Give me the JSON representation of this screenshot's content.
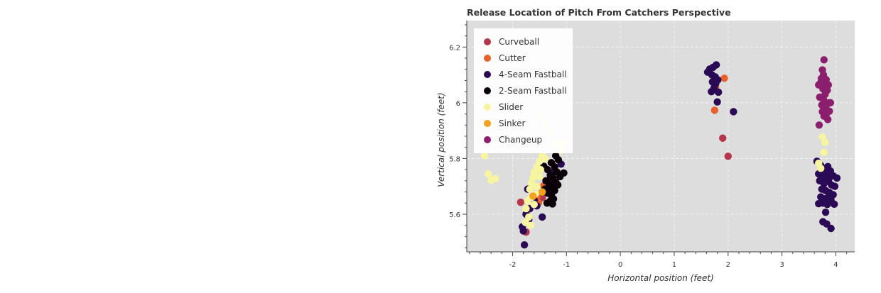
{
  "chart_data": {
    "type": "scatter",
    "title": "Release Location of Pitch From Catchers Perspective",
    "xlabel": "Horizontal position (feet)",
    "ylabel": "Vertical position (feet)",
    "xlim": [
      -2.85,
      4.35
    ],
    "ylim": [
      5.465,
      6.295
    ],
    "x_ticks": [
      -2,
      -1,
      0,
      1,
      2,
      3,
      4
    ],
    "x_tick_labels": [
      "-2",
      "-1",
      "0",
      "1",
      "2",
      "3",
      "4"
    ],
    "y_ticks": [
      5.6,
      5.8,
      6.0,
      6.2
    ],
    "y_tick_labels": [
      "5.6",
      "5.8",
      "6",
      "6.2"
    ],
    "grid": true,
    "background": "#dddddd",
    "legend_position": "top-left",
    "series": [
      {
        "name": "Curveball",
        "color": "#b5364a",
        "points": [
          [
            1.9,
            5.873
          ],
          [
            2.0,
            5.808
          ],
          [
            -1.85,
            5.643
          ],
          [
            -1.75,
            5.536
          ],
          [
            -1.45,
            5.66
          ]
        ]
      },
      {
        "name": "Cutter",
        "color": "#e8602a",
        "points": [
          [
            1.93,
            6.088
          ],
          [
            1.77,
            6.054
          ],
          [
            1.75,
            5.973
          ],
          [
            -1.42,
            5.703
          ],
          [
            -1.35,
            5.676
          ],
          [
            -1.52,
            5.641
          ],
          [
            -1.18,
            5.709
          ],
          [
            -1.55,
            5.66
          ]
        ]
      },
      {
        "name": "4-Seam Fastball",
        "color": "#2a0a55",
        "points": [
          [
            1.78,
            6.136
          ],
          [
            1.72,
            6.127
          ],
          [
            1.66,
            6.121
          ],
          [
            1.62,
            6.11
          ],
          [
            1.7,
            6.1
          ],
          [
            1.76,
            6.093
          ],
          [
            1.81,
            6.082
          ],
          [
            1.71,
            6.075
          ],
          [
            1.77,
            6.068
          ],
          [
            1.74,
            6.054
          ],
          [
            1.69,
            6.04
          ],
          [
            1.82,
            6.038
          ],
          [
            1.8,
            6.003
          ],
          [
            2.1,
            5.968
          ],
          [
            3.65,
            5.79
          ],
          [
            3.72,
            5.775
          ],
          [
            3.78,
            5.76
          ],
          [
            3.85,
            5.771
          ],
          [
            3.9,
            5.755
          ],
          [
            3.68,
            5.745
          ],
          [
            3.75,
            5.73
          ],
          [
            3.82,
            5.742
          ],
          [
            3.95,
            5.738
          ],
          [
            4.02,
            5.73
          ],
          [
            3.7,
            5.72
          ],
          [
            3.78,
            5.71
          ],
          [
            3.86,
            5.718
          ],
          [
            3.92,
            5.705
          ],
          [
            3.98,
            5.7
          ],
          [
            3.74,
            5.69
          ],
          [
            3.81,
            5.685
          ],
          [
            3.88,
            5.678
          ],
          [
            3.95,
            5.67
          ],
          [
            3.72,
            5.662
          ],
          [
            3.79,
            5.655
          ],
          [
            3.85,
            5.66
          ],
          [
            3.91,
            5.65
          ],
          [
            3.76,
            5.64
          ],
          [
            3.84,
            5.635
          ],
          [
            3.68,
            5.638
          ],
          [
            3.97,
            5.636
          ],
          [
            3.81,
            5.607
          ],
          [
            3.76,
            5.573
          ],
          [
            3.83,
            5.565
          ],
          [
            3.91,
            5.549
          ],
          [
            3.74,
            5.75
          ],
          [
            3.87,
            5.727
          ],
          [
            -1.8,
            5.54
          ],
          [
            -1.75,
            5.6
          ],
          [
            -1.68,
            5.62
          ],
          [
            -1.72,
            5.69
          ],
          [
            -1.55,
            5.63
          ],
          [
            -1.82,
            5.555
          ],
          [
            -1.78,
            5.49
          ],
          [
            -1.1,
            5.78
          ],
          [
            -1.25,
            5.75
          ],
          [
            -1.33,
            5.72
          ],
          [
            -1.6,
            5.65
          ],
          [
            -1.7,
            5.58
          ],
          [
            -1.45,
            5.59
          ]
        ]
      },
      {
        "name": "2-Seam Fastball",
        "color": "#0a0008",
        "points": [
          [
            -1.2,
            5.81
          ],
          [
            -1.15,
            5.795
          ],
          [
            -1.28,
            5.785
          ],
          [
            -1.22,
            5.77
          ],
          [
            -1.35,
            5.76
          ],
          [
            -1.18,
            5.752
          ],
          [
            -1.05,
            5.748
          ],
          [
            -1.3,
            5.74
          ],
          [
            -1.25,
            5.73
          ],
          [
            -1.38,
            5.72
          ],
          [
            -1.2,
            5.715
          ],
          [
            -1.32,
            5.705
          ],
          [
            -1.27,
            5.695
          ],
          [
            -1.4,
            5.69
          ],
          [
            -1.22,
            5.685
          ],
          [
            -1.35,
            5.676
          ],
          [
            -1.28,
            5.668
          ],
          [
            -1.24,
            5.655
          ],
          [
            -1.3,
            5.648
          ],
          [
            -1.36,
            5.64
          ],
          [
            -1.26,
            5.637
          ],
          [
            -1.42,
            5.772
          ],
          [
            -1.12,
            5.735
          ],
          [
            -1.16,
            5.705
          ]
        ]
      },
      {
        "name": "Slider",
        "color": "#f7f5a0",
        "points": [
          [
            -2.52,
            5.81
          ],
          [
            -2.45,
            5.745
          ],
          [
            -2.4,
            5.722
          ],
          [
            -2.32,
            5.728
          ],
          [
            -1.45,
            5.81
          ],
          [
            -1.5,
            5.79
          ],
          [
            -1.55,
            5.77
          ],
          [
            -1.6,
            5.75
          ],
          [
            -1.62,
            5.73
          ],
          [
            -1.5,
            5.735
          ],
          [
            -1.65,
            5.712
          ],
          [
            -1.55,
            5.7
          ],
          [
            -1.68,
            5.69
          ],
          [
            -1.58,
            5.672
          ],
          [
            -1.65,
            5.66
          ],
          [
            -1.72,
            5.648
          ],
          [
            -1.6,
            5.635
          ],
          [
            -1.75,
            5.62
          ],
          [
            -1.7,
            5.59
          ],
          [
            -1.76,
            5.57
          ],
          [
            -1.66,
            5.56
          ],
          [
            -1.4,
            5.8
          ],
          [
            -1.1,
            5.83
          ],
          [
            -1.05,
            5.86
          ],
          [
            -1.15,
            5.86
          ],
          [
            -1.3,
            5.9
          ],
          [
            -1.4,
            5.93
          ],
          [
            -1.5,
            5.96
          ],
          [
            -1.2,
            5.85
          ],
          [
            -1.48,
            5.76
          ],
          [
            3.75,
            5.877
          ],
          [
            3.8,
            5.858
          ],
          [
            3.78,
            5.822
          ],
          [
            3.68,
            5.783
          ],
          [
            3.72,
            5.765
          ]
        ]
      },
      {
        "name": "Sinker",
        "color": "#f4a21b",
        "points": [
          [
            -1.45,
            5.68
          ],
          [
            -1.62,
            5.665
          ]
        ]
      },
      {
        "name": "Changeup",
        "color": "#8b1f6e",
        "points": [
          [
            3.78,
            6.154
          ],
          [
            3.75,
            6.118
          ],
          [
            3.77,
            6.1
          ],
          [
            3.73,
            6.087
          ],
          [
            3.82,
            6.083
          ],
          [
            3.72,
            6.073
          ],
          [
            3.8,
            6.068
          ],
          [
            3.86,
            6.064
          ],
          [
            3.68,
            6.064
          ],
          [
            3.76,
            6.05
          ],
          [
            3.84,
            6.045
          ],
          [
            3.7,
            6.02
          ],
          [
            3.77,
            6.012
          ],
          [
            3.87,
            6.0
          ],
          [
            3.74,
            5.992
          ],
          [
            3.82,
            5.99
          ],
          [
            3.78,
            5.98
          ],
          [
            3.88,
            5.97
          ],
          [
            3.75,
            5.968
          ],
          [
            3.83,
            5.962
          ],
          [
            3.78,
            5.952
          ],
          [
            3.85,
            5.94
          ],
          [
            3.69,
            5.92
          ],
          [
            3.8,
            6.03
          ],
          [
            3.9,
            6.0
          ]
        ]
      }
    ]
  }
}
